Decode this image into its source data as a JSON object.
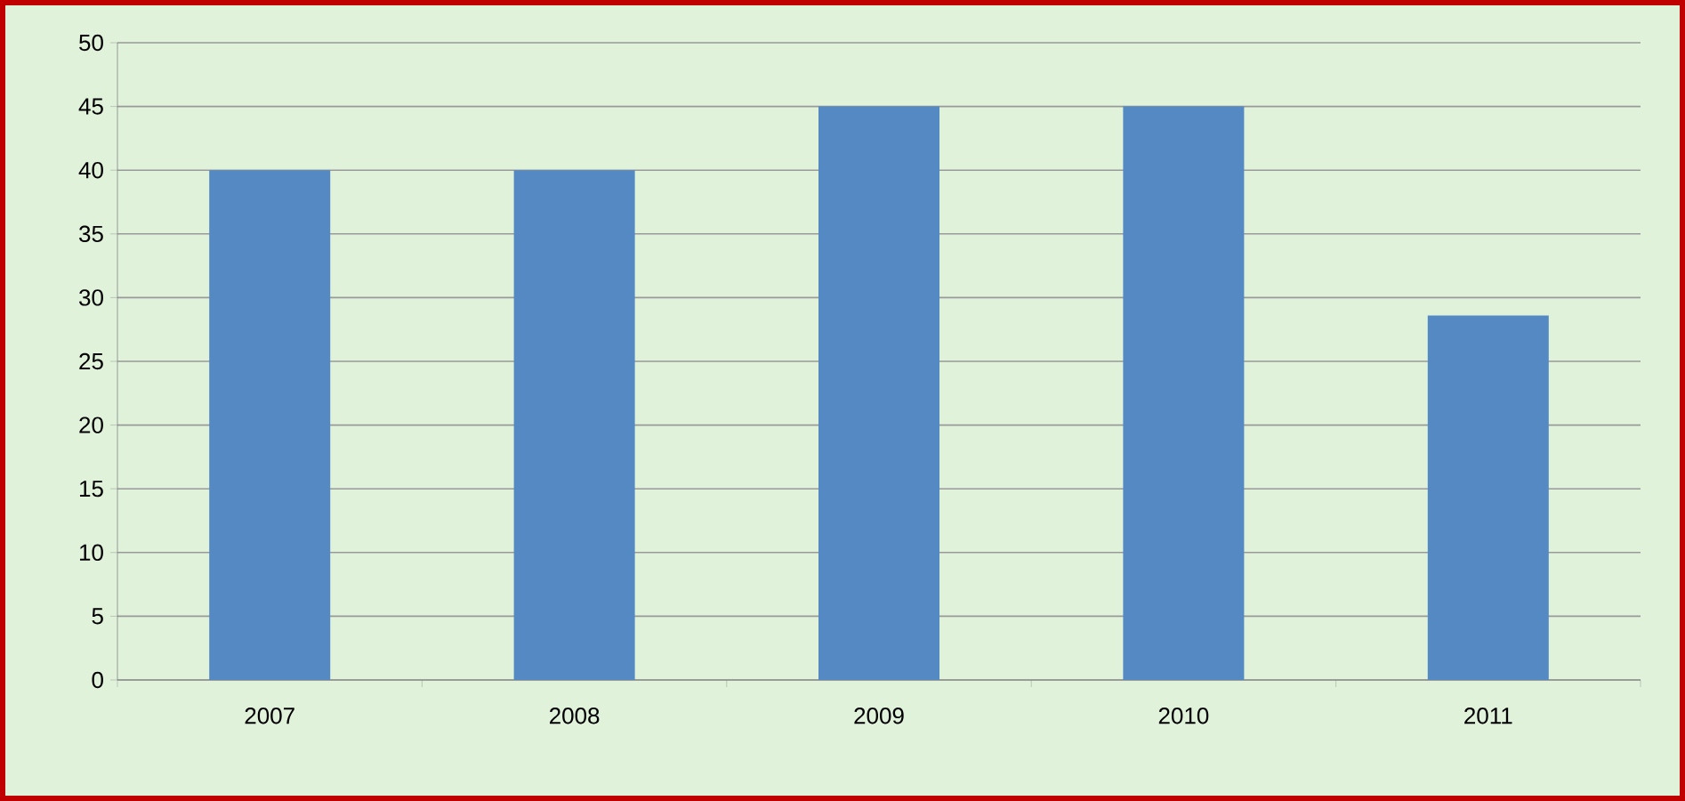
{
  "chart_data": {
    "type": "bar",
    "categories": [
      "2007",
      "2008",
      "2009",
      "2010",
      "2011"
    ],
    "values": [
      40,
      40,
      45,
      45,
      28.6
    ],
    "color": "#5589c4",
    "ylim": [
      0,
      50
    ],
    "yticks": [
      0,
      5,
      10,
      15,
      20,
      25,
      30,
      35,
      40,
      45,
      50
    ],
    "grid": "y"
  }
}
